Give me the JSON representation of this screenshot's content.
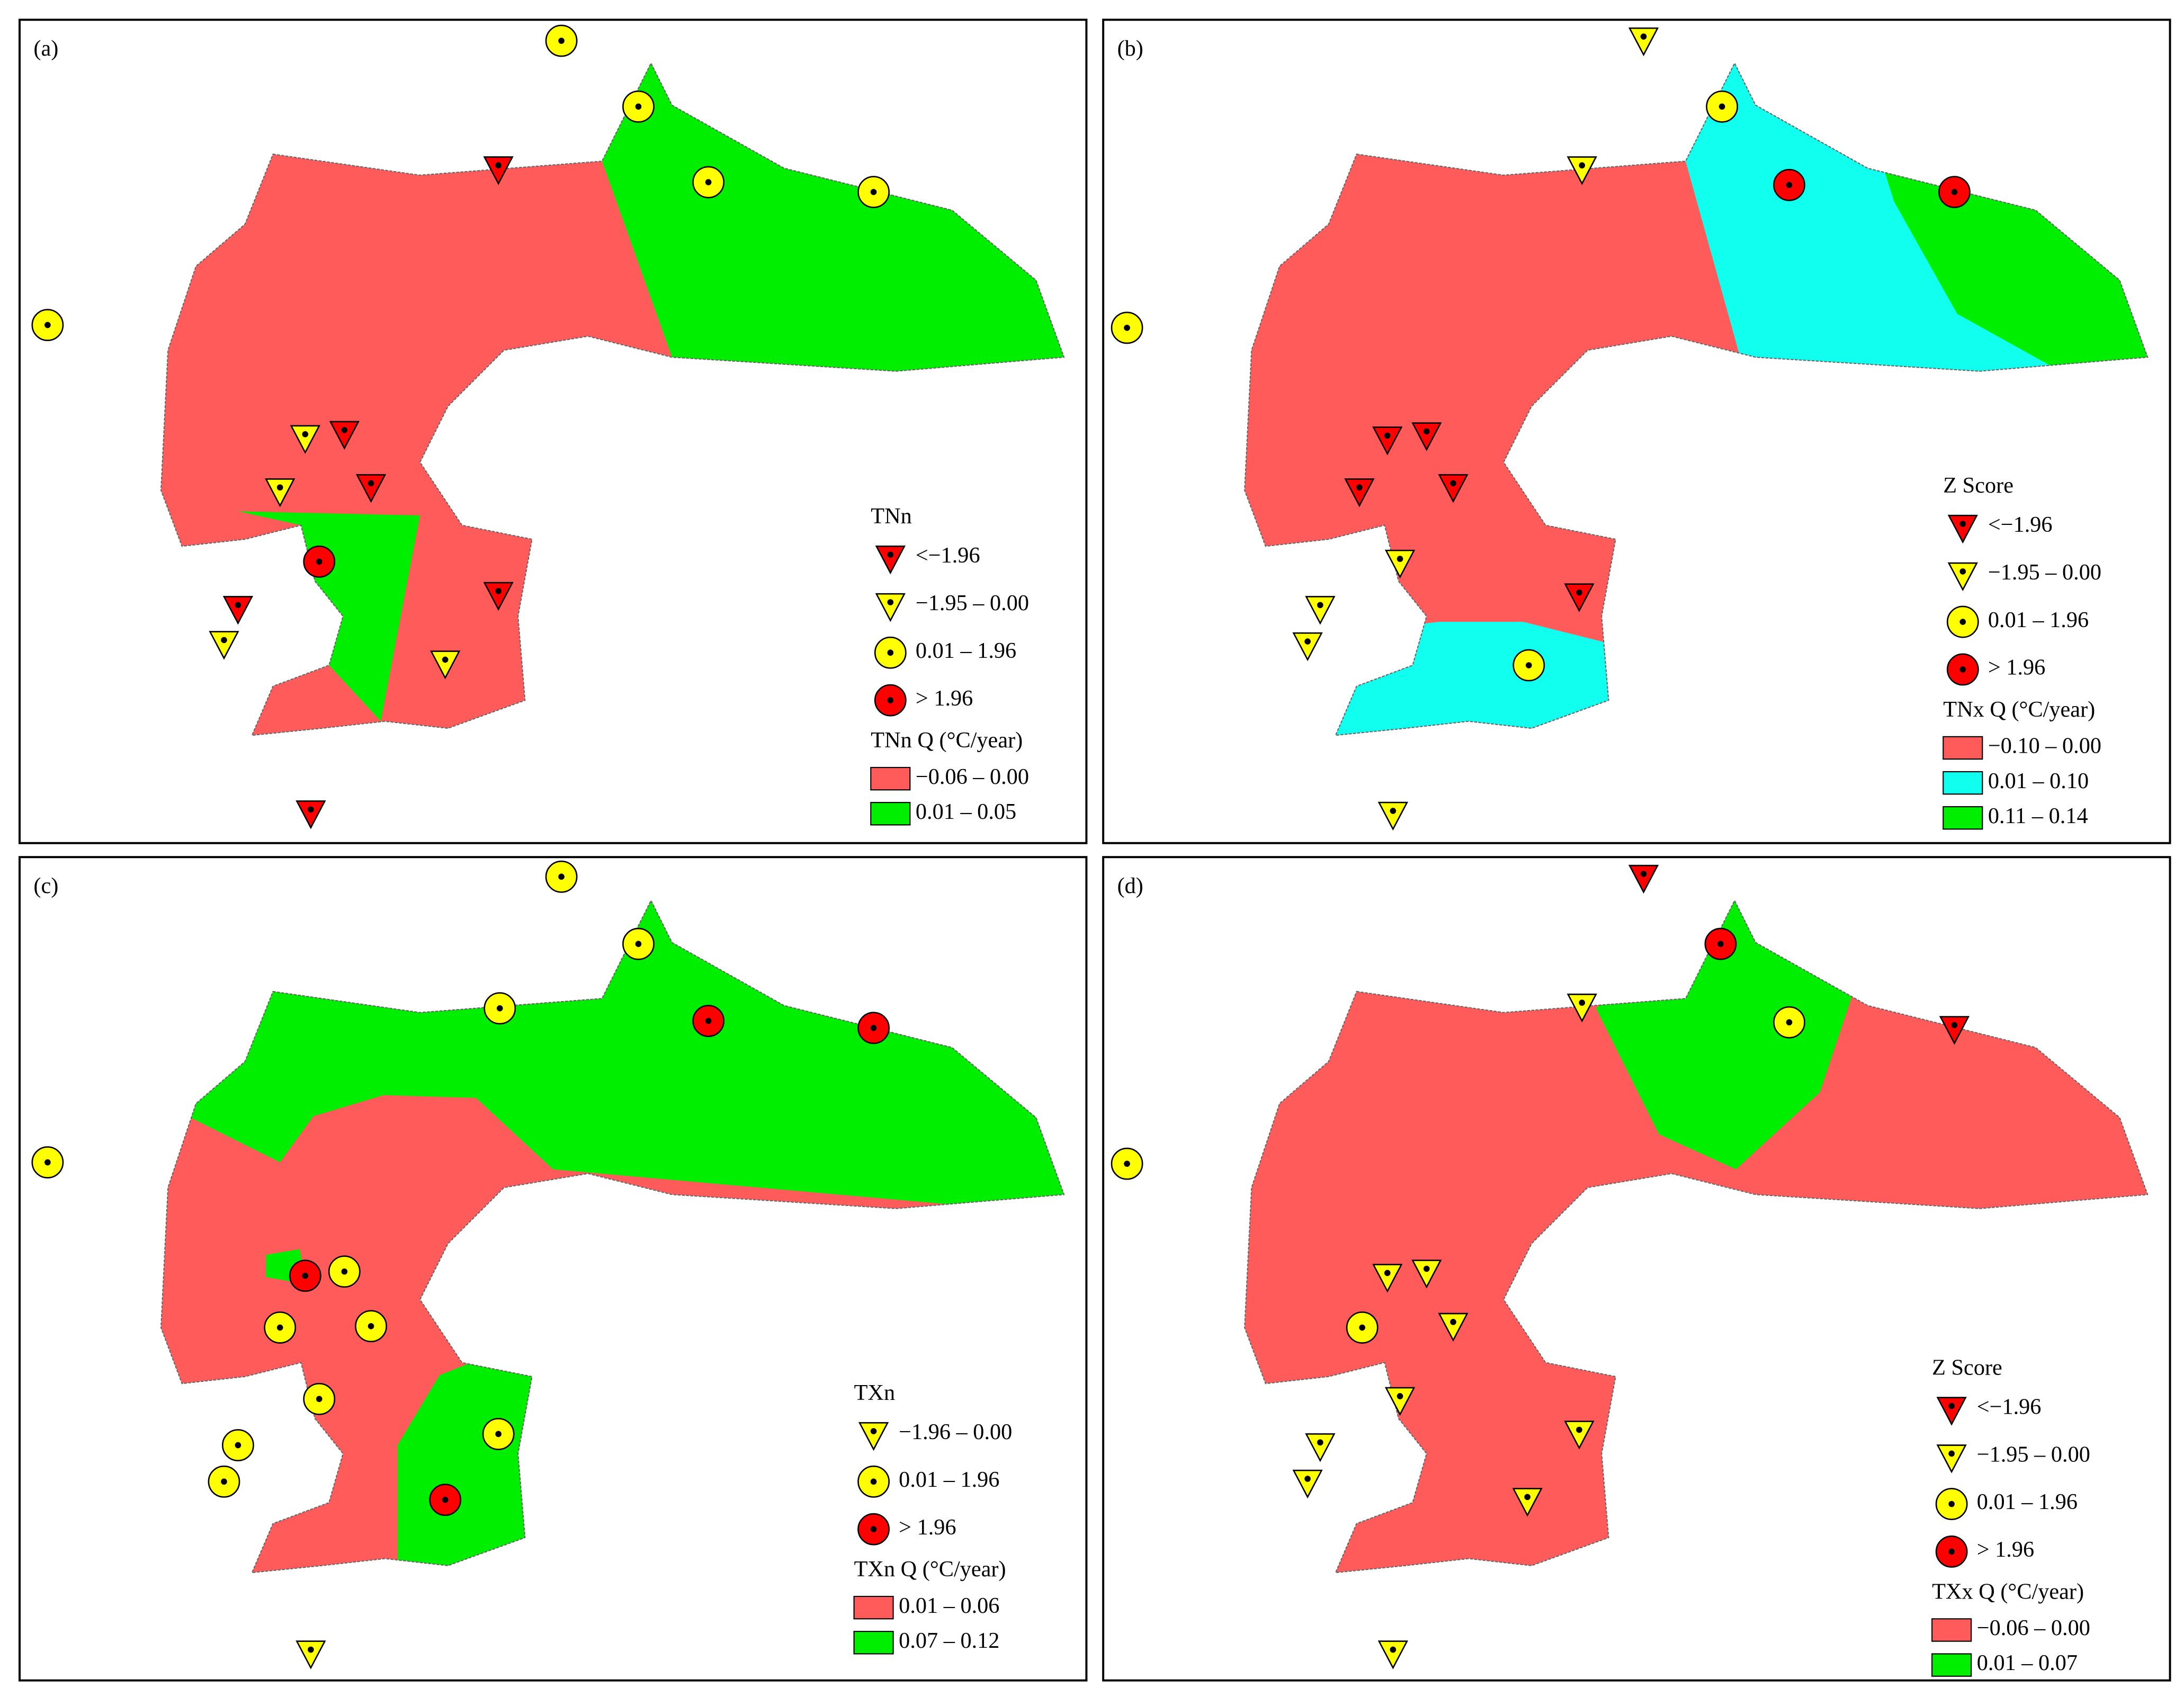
{
  "panels": [
    {
      "label": "(a)",
      "legend": {
        "symbol_title": "TNn",
        "symbols": [
          "<−1.96",
          "−1.95 – 0.00",
          "0.01 – 1.96",
          "> 1.96"
        ],
        "fill_title": "TNn Q (°C/year)",
        "fills": [
          "−0.06 – 0.00",
          "0.01 – 0.05"
        ]
      }
    },
    {
      "label": "(b)",
      "legend": {
        "symbol_title": "Z Score",
        "symbols": [
          "<−1.96",
          "−1.95 – 0.00",
          "0.01 – 1.96",
          "> 1.96"
        ],
        "fill_title": "TNx Q (°C/year)",
        "fills": [
          "−0.10 – 0.00",
          "0.01 – 0.10",
          "0.11 – 0.14"
        ]
      }
    },
    {
      "label": "(c)",
      "legend": {
        "symbol_title": "TXn",
        "symbols": [
          "−1.96 – 0.00",
          "0.01 – 1.96",
          "> 1.96"
        ],
        "fill_title": "TXn Q (°C/year)",
        "fills": [
          "0.01 – 0.06",
          "0.07 – 0.12"
        ]
      }
    },
    {
      "label": "(d)",
      "legend": {
        "symbol_title": "Z Score",
        "symbols": [
          "<−1.96",
          "−1.95 – 0.00",
          "0.01 – 1.96",
          "> 1.96"
        ],
        "fill_title": "TXx Q (°C/year)",
        "fills": [
          "−0.06 – 0.00",
          "0.01 – 0.07"
        ]
      }
    }
  ]
}
